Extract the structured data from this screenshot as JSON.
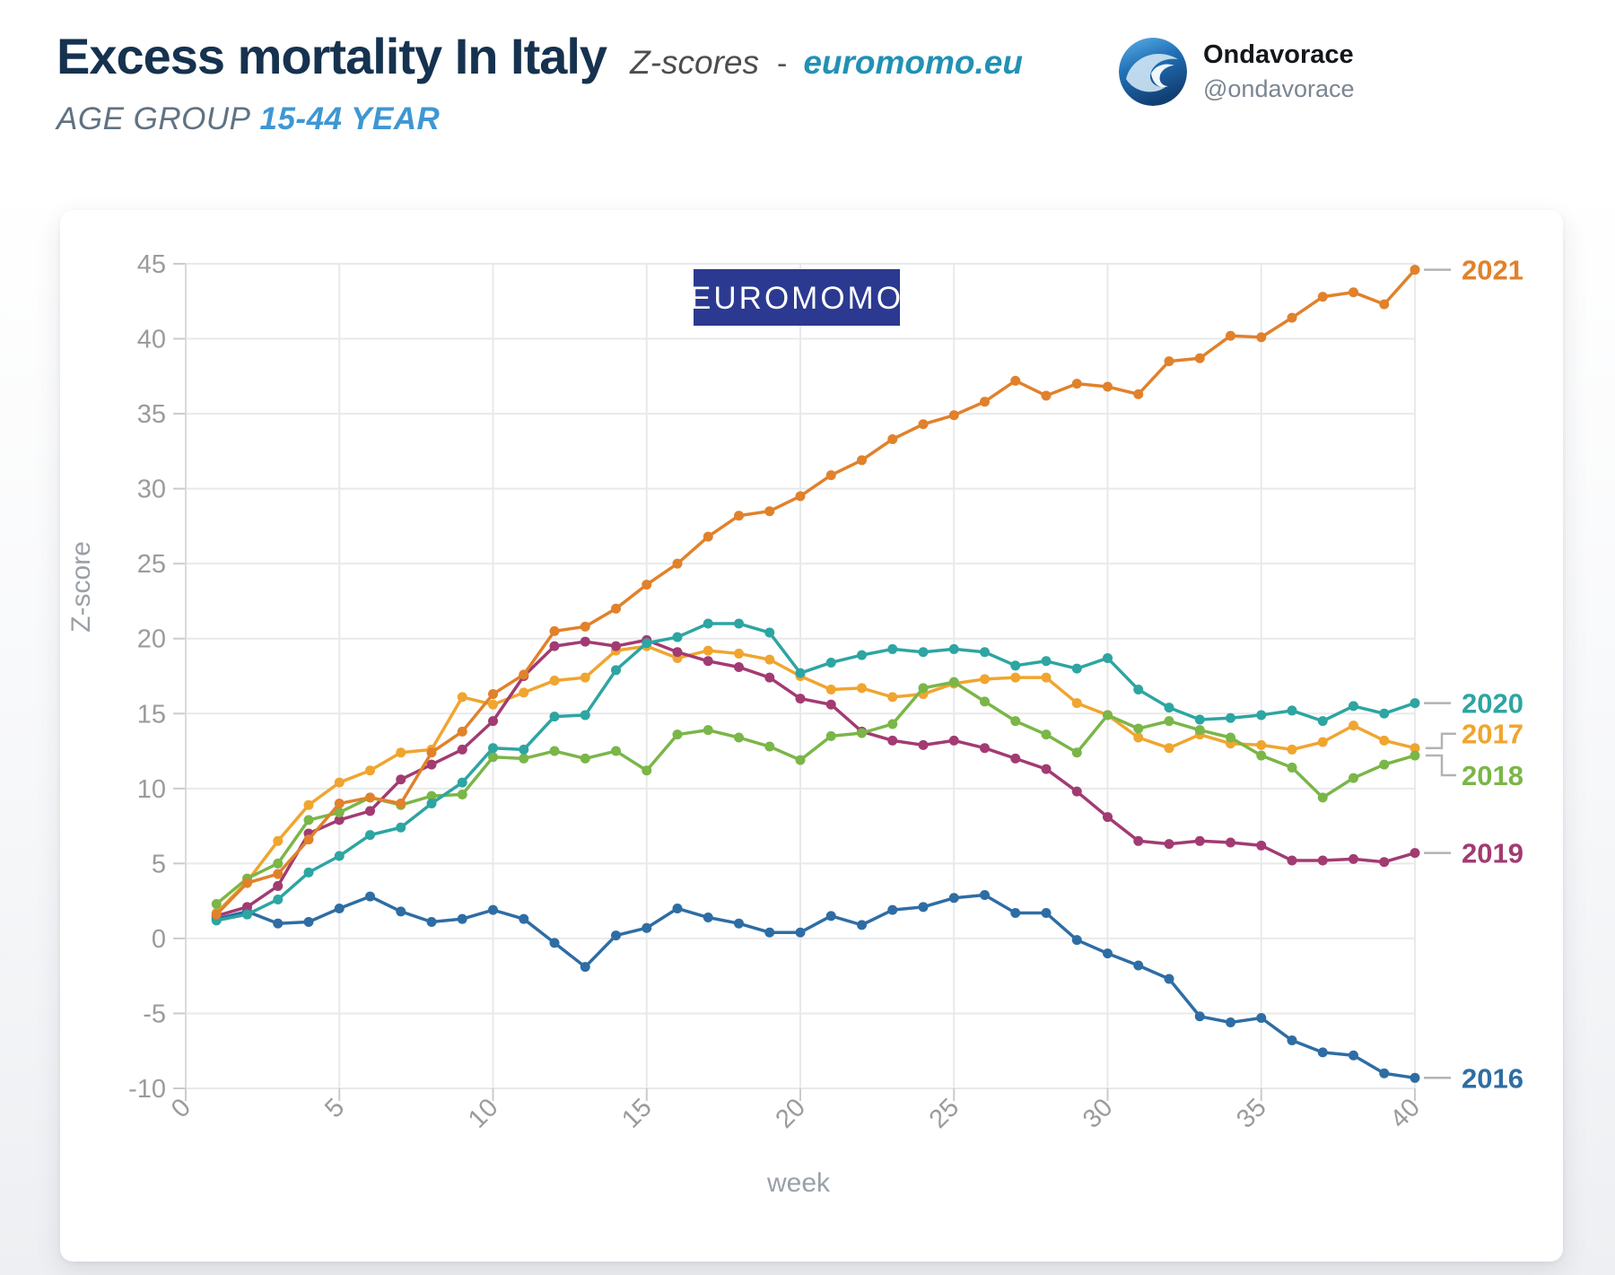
{
  "header": {
    "title": "Excess mortality In Italy",
    "subtitle_italic": "Z-scores",
    "subtitle_sep": "-",
    "subtitle_link": "euromomo.eu",
    "age_group_label": "AGE GROUP",
    "age_group_value": "15-44 YEAR",
    "account_name": "Ondavorace",
    "account_handle": "@ondavorace"
  },
  "badge": {
    "text": "EUROMOMO",
    "bg": "#2b3990",
    "fg": "#ffffff"
  },
  "chart_data": {
    "type": "line",
    "title": "Excess mortality In Italy, Z-scores, age group 15-44 year",
    "xlabel": "week",
    "ylabel": "Z-score",
    "xlim": [
      0,
      40
    ],
    "ylim": [
      -10,
      45
    ],
    "xticks": [
      0,
      5,
      10,
      15,
      20,
      25,
      30,
      35,
      40
    ],
    "ytick_step": 5,
    "grid": true,
    "legend_position": "right-end-labels",
    "x": [
      1,
      2,
      3,
      4,
      5,
      6,
      7,
      8,
      9,
      10,
      11,
      12,
      13,
      14,
      15,
      16,
      17,
      18,
      19,
      20,
      21,
      22,
      23,
      24,
      25,
      26,
      27,
      28,
      29,
      30,
      31,
      32,
      33,
      34,
      35,
      36,
      37,
      38,
      39,
      40
    ],
    "series": [
      {
        "name": "2016",
        "color": "#2e6da4",
        "connector": "dash",
        "label_dy": 0,
        "values": [
          1.3,
          1.8,
          1.0,
          1.1,
          2.0,
          2.8,
          1.8,
          1.1,
          1.3,
          1.9,
          1.3,
          -0.3,
          -1.9,
          0.2,
          0.7,
          2.0,
          1.4,
          1.0,
          0.4,
          0.4,
          1.5,
          0.9,
          1.9,
          2.1,
          2.7,
          2.9,
          1.7,
          1.7,
          -0.1,
          -1.0,
          -1.8,
          -2.7,
          -5.2,
          -5.6,
          -5.3,
          -6.8,
          -7.6,
          -7.8,
          -9.0,
          -9.3
        ]
      },
      {
        "name": "2017",
        "color": "#f0a52f",
        "connector": "elbow",
        "label_dy": -16,
        "values": [
          1.7,
          3.8,
          6.5,
          8.9,
          10.4,
          11.2,
          12.4,
          12.6,
          16.1,
          15.6,
          16.4,
          17.2,
          17.4,
          19.2,
          19.5,
          18.7,
          19.2,
          19.0,
          18.6,
          17.5,
          16.6,
          16.7,
          16.1,
          16.3,
          17.0,
          17.3,
          17.4,
          17.4,
          15.7,
          14.9,
          13.4,
          12.7,
          13.6,
          13.0,
          12.9,
          12.6,
          13.1,
          14.2,
          13.2,
          12.7
        ]
      },
      {
        "name": "2019",
        "color": "#a23b72",
        "connector": "dash",
        "label_dy": 0,
        "values": [
          1.5,
          2.1,
          3.5,
          7.0,
          7.9,
          8.5,
          10.6,
          11.6,
          12.6,
          14.5,
          17.5,
          19.5,
          19.8,
          19.5,
          19.9,
          19.1,
          18.5,
          18.1,
          17.4,
          16.0,
          15.6,
          13.8,
          13.2,
          12.9,
          13.2,
          12.7,
          12.0,
          11.3,
          9.8,
          8.1,
          6.5,
          6.3,
          6.5,
          6.4,
          6.2,
          5.2,
          5.2,
          5.3,
          5.1,
          5.7
        ]
      },
      {
        "name": "2018",
        "color": "#7ab648",
        "connector": "elbow",
        "label_dy": 22,
        "values": [
          2.3,
          4.0,
          5.0,
          7.9,
          8.4,
          9.4,
          8.9,
          9.5,
          9.6,
          12.1,
          12.0,
          12.5,
          12.0,
          12.5,
          11.2,
          13.6,
          13.9,
          13.4,
          12.8,
          11.9,
          13.5,
          13.7,
          14.3,
          16.7,
          17.1,
          15.8,
          14.5,
          13.6,
          12.4,
          14.9,
          14.0,
          14.5,
          13.9,
          13.4,
          12.2,
          11.4,
          9.4,
          10.7,
          11.6,
          12.2
        ]
      },
      {
        "name": "2020",
        "color": "#2da5a2",
        "connector": "dash",
        "label_dy": 0,
        "values": [
          1.2,
          1.6,
          2.6,
          4.4,
          5.5,
          6.9,
          7.4,
          9.0,
          10.4,
          12.7,
          12.6,
          14.8,
          14.9,
          17.9,
          19.7,
          20.1,
          21.0,
          21.0,
          20.4,
          17.7,
          18.4,
          18.9,
          19.3,
          19.1,
          19.3,
          19.1,
          18.2,
          18.5,
          18.0,
          18.7,
          16.6,
          15.4,
          14.6,
          14.7,
          14.9,
          15.2,
          14.5,
          15.5,
          15.0,
          15.7
        ]
      },
      {
        "name": "2021",
        "color": "#e1812b",
        "connector": "dash",
        "label_dy": 0,
        "values": [
          1.6,
          3.7,
          4.3,
          6.6,
          9.0,
          9.4,
          9.0,
          12.4,
          13.8,
          16.3,
          17.6,
          20.5,
          20.8,
          22.0,
          23.6,
          25.0,
          26.8,
          28.2,
          28.5,
          29.5,
          30.9,
          31.9,
          33.3,
          34.3,
          34.9,
          35.8,
          37.2,
          36.2,
          37.0,
          36.8,
          36.3,
          38.5,
          38.7,
          40.2,
          40.1,
          41.4,
          42.8,
          43.1,
          42.3,
          44.6
        ]
      }
    ],
    "style": {
      "grid_color": "#e8e9eb",
      "axis_line_color": "#d9dadc",
      "tick_stub_color": "#c9cbcf",
      "tick_label_color": "#9b9b9b",
      "axis_title_color": "#9aa0a6",
      "connector_color": "#b3b3b3"
    }
  }
}
